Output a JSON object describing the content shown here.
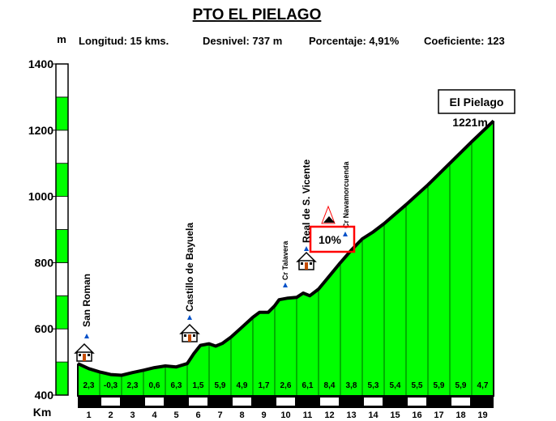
{
  "chart_data": {
    "type": "area",
    "title": "PTO EL PIELAGO",
    "info": {
      "longitud": "Longitud: 15 kms.",
      "desnivel": "Desnivel: 737 m",
      "porcentaje": "Porcentaje: 4,91%",
      "coeficiente": "Coeficiente:  123"
    },
    "ylabel": "m",
    "xlabel": "Km",
    "ylim": [
      400,
      1400
    ],
    "yticks": [
      "400",
      "600",
      "800",
      "1000",
      "1200",
      "1400"
    ],
    "xlim": [
      0,
      19.5
    ],
    "km_labels": [
      "1",
      "2",
      "3",
      "4",
      "5",
      "6",
      "7",
      "8",
      "9",
      "10",
      "11",
      "12",
      "13",
      "14",
      "15",
      "16",
      "17",
      "18",
      "19"
    ],
    "profile": [
      [
        0,
        495
      ],
      [
        0.5,
        480
      ],
      [
        1,
        470
      ],
      [
        1.5,
        462
      ],
      [
        2,
        460
      ],
      [
        2.5,
        468
      ],
      [
        3,
        475
      ],
      [
        3.5,
        483
      ],
      [
        4,
        488
      ],
      [
        4.5,
        485
      ],
      [
        5,
        495
      ],
      [
        5.3,
        525
      ],
      [
        5.6,
        550
      ],
      [
        6,
        555
      ],
      [
        6.3,
        548
      ],
      [
        6.6,
        556
      ],
      [
        7,
        575
      ],
      [
        7.5,
        605
      ],
      [
        8,
        635
      ],
      [
        8.3,
        650
      ],
      [
        8.7,
        650
      ],
      [
        9,
        670
      ],
      [
        9.2,
        688
      ],
      [
        9.6,
        693
      ],
      [
        10,
        695
      ],
      [
        10.3,
        708
      ],
      [
        10.6,
        700
      ],
      [
        11,
        720
      ],
      [
        11.5,
        760
      ],
      [
        12,
        800
      ],
      [
        12.5,
        838
      ],
      [
        13,
        872
      ],
      [
        13.5,
        893
      ],
      [
        14,
        918
      ],
      [
        15,
        975
      ],
      [
        16,
        1035
      ],
      [
        17,
        1100
      ],
      [
        18,
        1165
      ],
      [
        19,
        1228
      ]
    ],
    "gradients": [
      "2,3",
      "-0,3",
      "2,3",
      "0,6",
      "6,3",
      "1,5",
      "5,9",
      "4,9",
      "1,7",
      "2,6",
      "6,1",
      "8,4",
      "3,8",
      "5,3",
      "5,4",
      "5,5",
      "5,9",
      "5,9",
      "4,7"
    ],
    "waypoints": [
      {
        "name": "San Roman",
        "km": 0.2
      },
      {
        "name": "Castillo de Bayuela",
        "km": 5.5
      },
      {
        "name": "Cr Talavera",
        "km": 10
      },
      {
        "name": "Real de S. Vicente",
        "km": 11
      },
      {
        "name": "Cr Navamorcuenda",
        "km": 13
      }
    ],
    "summit": {
      "name": "El Pielago",
      "elevation": "1221m"
    },
    "max_gradient_box": "10%",
    "colors": {
      "fill": "#00ff00",
      "line": "#000000",
      "highlight": "#ff0000",
      "scale_white": "#ffffff"
    }
  }
}
